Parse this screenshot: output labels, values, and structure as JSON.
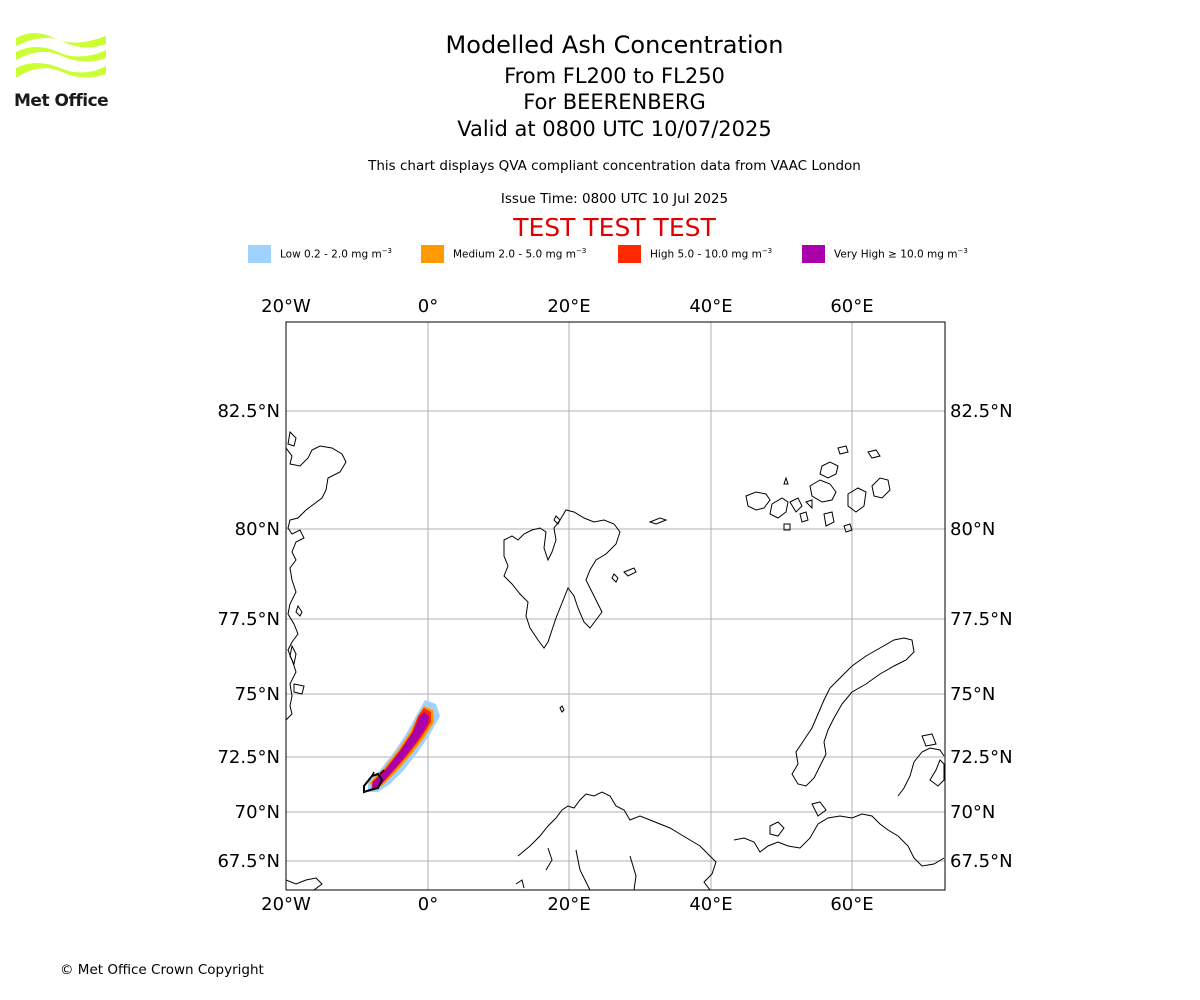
{
  "logo": {
    "text": "Met Office",
    "color": "#ccff33"
  },
  "titles": {
    "main": "Modelled Ash Concentration",
    "levels": "From FL200 to FL250",
    "volcano": "For BEERENBERG",
    "valid": "Valid at 0800 UTC 10/07/2025",
    "note": "This chart displays QVA compliant concentration data from VAAC London",
    "issue": "Issue Time: 0800 UTC 10 Jul 2025",
    "test": "TEST TEST TEST"
  },
  "legend": [
    {
      "label": "Low 0.2 - 2.0 mg m",
      "color": "#a0d2ff"
    },
    {
      "label": "Medium 2.0 - 5.0 mg m",
      "color": "#ff9900"
    },
    {
      "label": "High 5.0 - 10.0 mg m",
      "color": "#ff2a00"
    },
    {
      "label": "Very High ≥ 10.0 mg m",
      "color": "#aa00aa"
    }
  ],
  "legend_unit_exponent": "−3",
  "map": {
    "lon_labels": [
      "20°W",
      "0°",
      "20°E",
      "40°E",
      "60°E"
    ],
    "lat_labels": [
      "82.5°N",
      "80°N",
      "77.5°N",
      "75°N",
      "72.5°N",
      "70°N",
      "67.5°N"
    ],
    "volcano_lat": 71.08,
    "volcano_lon": -8.16
  },
  "copyright": "© Met Office Crown Copyright"
}
